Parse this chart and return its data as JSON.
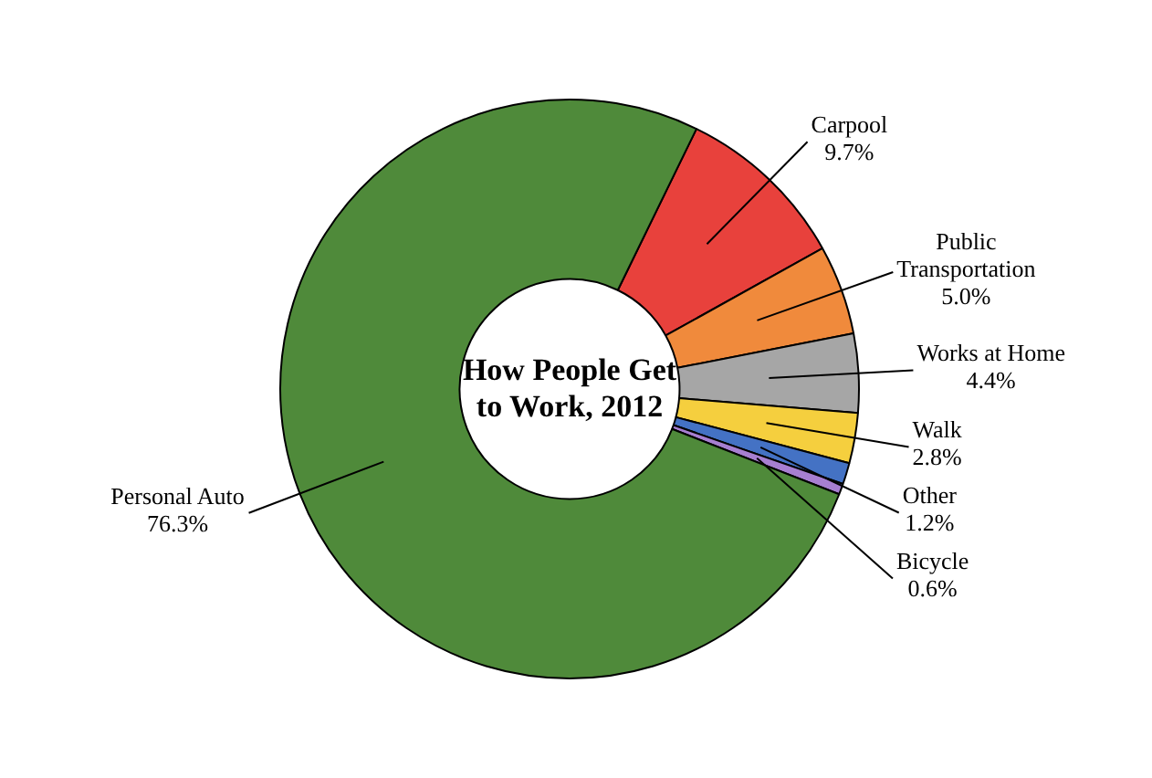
{
  "chart_data": {
    "type": "donut",
    "title": "How People Get to Work, 2012",
    "categories": [
      "Carpool",
      "Public Transportation",
      "Works at Home",
      "Walk",
      "Other",
      "Bicycle",
      "Personal Auto"
    ],
    "values": [
      9.7,
      5.0,
      4.4,
      2.8,
      1.2,
      0.6,
      76.3
    ],
    "value_labels": [
      "9.7%",
      "5.0%",
      "4.4%",
      "2.8%",
      "1.2%",
      "0.6%",
      "76.3%"
    ],
    "colors": [
      "#e8413c",
      "#f08a3c",
      "#a6a6a6",
      "#f5cf3e",
      "#4472c4",
      "#a77fd1",
      "#4f8a3a"
    ],
    "legend": false
  }
}
